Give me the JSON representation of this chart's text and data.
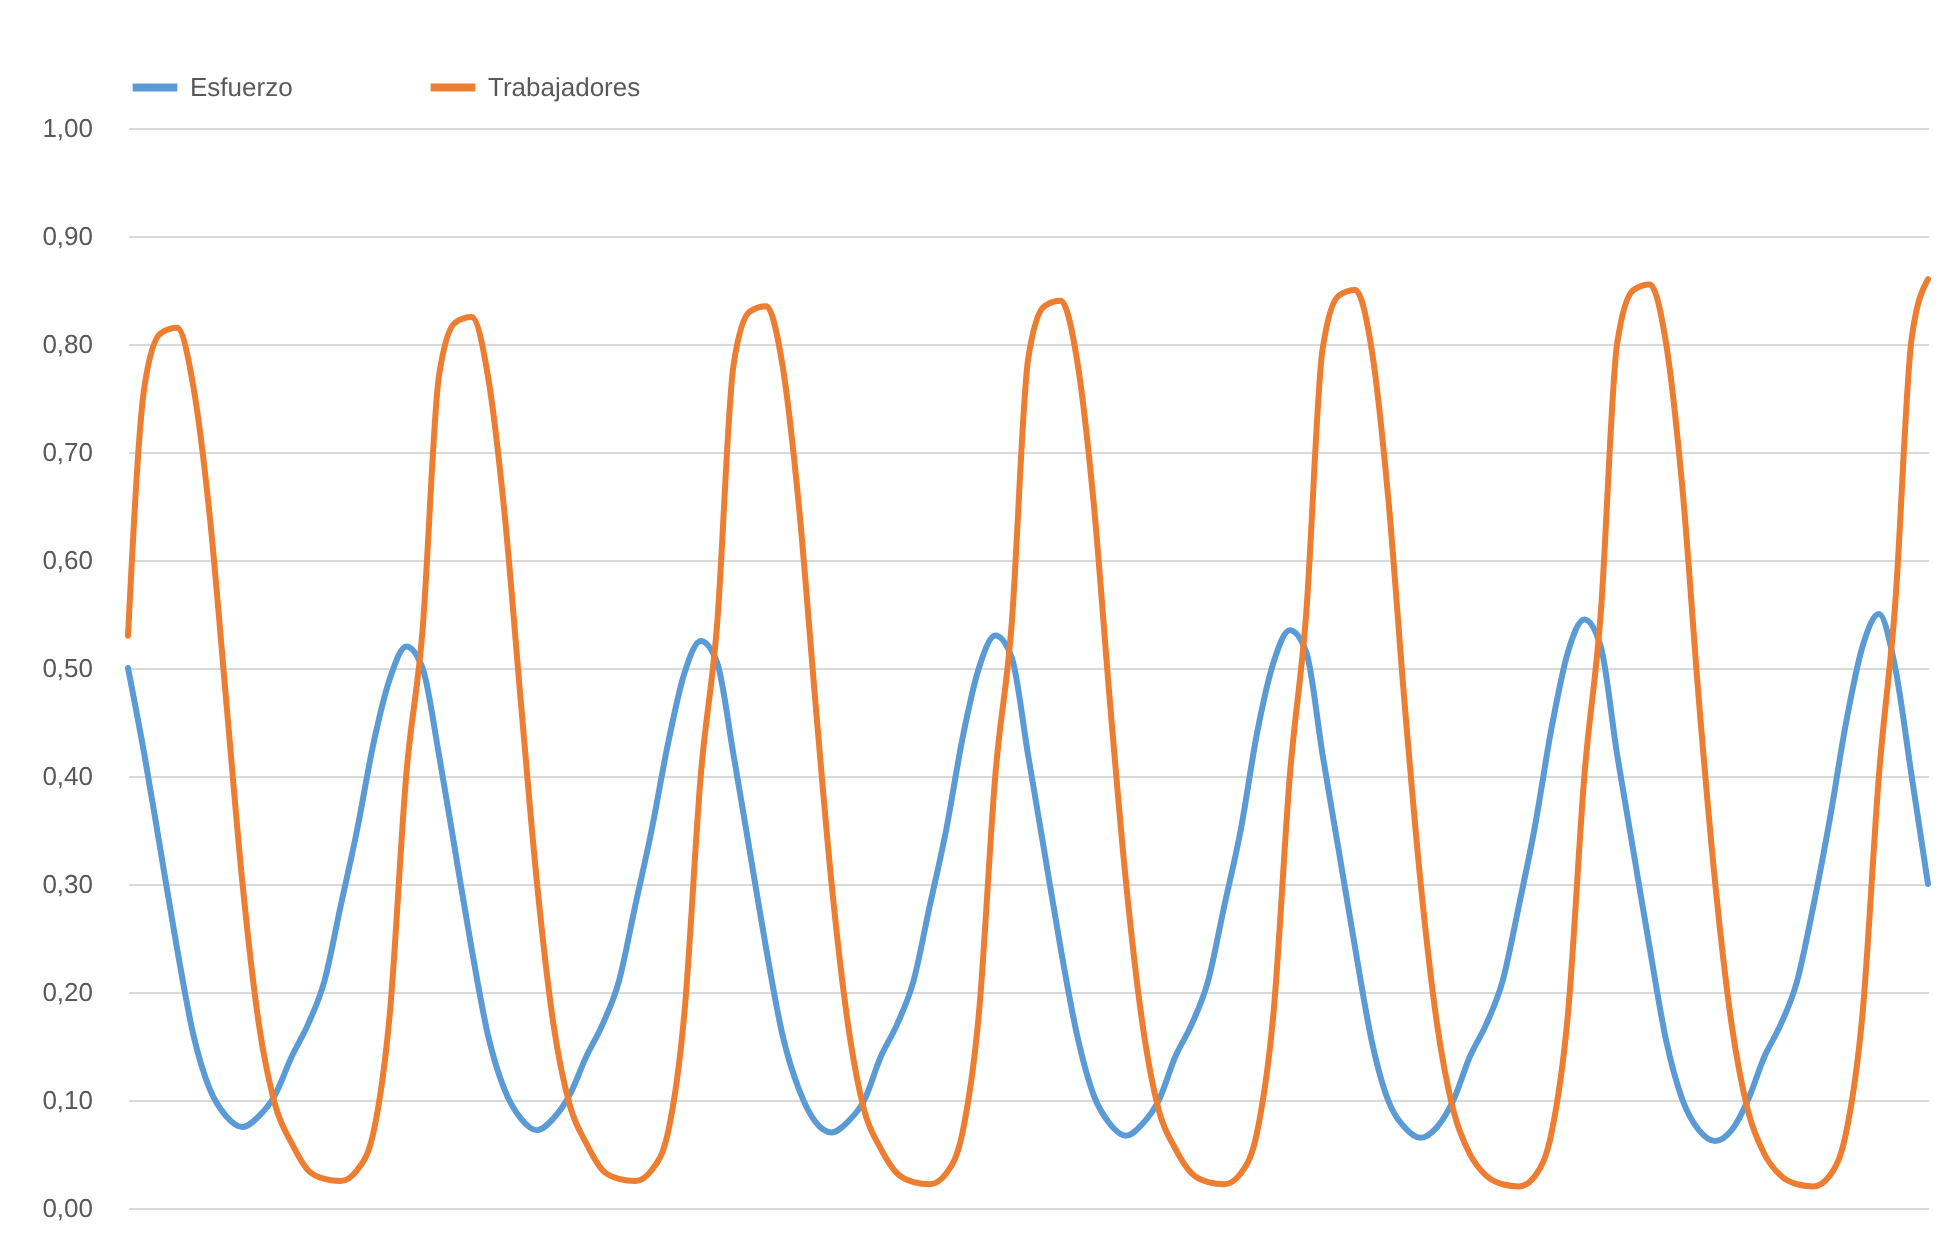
{
  "chart_data": {
    "type": "line",
    "categories": [
      null,
      null,
      null,
      null,
      null,
      null,
      null,
      null,
      null,
      null,
      null,
      null,
      null,
      null,
      null,
      null,
      null,
      null,
      null,
      null,
      null,
      null,
      null,
      null,
      null,
      null,
      null,
      null,
      null,
      null,
      null,
      null,
      null,
      null,
      null,
      null,
      null,
      null,
      null,
      null,
      null,
      null,
      null,
      null,
      null,
      null,
      null,
      null,
      null,
      null,
      null,
      null,
      null,
      null,
      null,
      null,
      null,
      null,
      null,
      null,
      null,
      null,
      null,
      null,
      null,
      null,
      null,
      null,
      null,
      null,
      null,
      null,
      null,
      null,
      null,
      null,
      null,
      null,
      null,
      null,
      null,
      null,
      null,
      null,
      null,
      null,
      null,
      null,
      null,
      null,
      null,
      null,
      null,
      null,
      null,
      null,
      null,
      null,
      null,
      null,
      null,
      null,
      null,
      null,
      null,
      null,
      null,
      null,
      null,
      null,
      null
    ],
    "series": [
      {
        "name": "Esfuerzo",
        "color": "#5b9bd5",
        "values": [
          0.5,
          0.42,
          0.33,
          0.24,
          0.16,
          0.11,
          0.085,
          0.075,
          0.085,
          0.105,
          0.14,
          0.17,
          0.21,
          0.28,
          0.35,
          0.43,
          0.49,
          0.52,
          0.5,
          0.42,
          0.33,
          0.24,
          0.16,
          0.11,
          0.083,
          0.072,
          0.083,
          0.105,
          0.14,
          0.17,
          0.21,
          0.28,
          0.35,
          0.43,
          0.495,
          0.525,
          0.505,
          0.42,
          0.33,
          0.24,
          0.16,
          0.11,
          0.08,
          0.07,
          0.08,
          0.1,
          0.14,
          0.17,
          0.21,
          0.28,
          0.35,
          0.435,
          0.5,
          0.53,
          0.51,
          0.42,
          0.33,
          0.24,
          0.16,
          0.105,
          0.078,
          0.067,
          0.078,
          0.1,
          0.14,
          0.17,
          0.21,
          0.28,
          0.35,
          0.44,
          0.505,
          0.535,
          0.515,
          0.42,
          0.33,
          0.24,
          0.155,
          0.1,
          0.075,
          0.065,
          0.075,
          0.1,
          0.14,
          0.17,
          0.21,
          0.28,
          0.355,
          0.445,
          0.515,
          0.545,
          0.52,
          0.42,
          0.33,
          0.24,
          0.155,
          0.1,
          0.072,
          0.062,
          0.072,
          0.1,
          0.14,
          0.17,
          0.21,
          0.28,
          0.36,
          0.45,
          0.52,
          0.55,
          0.5,
          0.4,
          0.3
        ]
      },
      {
        "name": "Trabajadores",
        "color": "#ed7d31",
        "values": [
          0.53,
          0.76,
          0.81,
          0.815,
          0.76,
          0.64,
          0.47,
          0.3,
          0.17,
          0.095,
          0.06,
          0.035,
          0.027,
          0.025,
          0.035,
          0.07,
          0.18,
          0.4,
          0.535,
          0.77,
          0.82,
          0.825,
          0.77,
          0.645,
          0.47,
          0.3,
          0.17,
          0.095,
          0.06,
          0.035,
          0.027,
          0.025,
          0.035,
          0.07,
          0.18,
          0.4,
          0.54,
          0.78,
          0.83,
          0.835,
          0.78,
          0.65,
          0.47,
          0.3,
          0.17,
          0.09,
          0.055,
          0.032,
          0.024,
          0.022,
          0.032,
          0.07,
          0.18,
          0.4,
          0.54,
          0.785,
          0.835,
          0.84,
          0.785,
          0.655,
          0.47,
          0.3,
          0.17,
          0.09,
          0.055,
          0.032,
          0.024,
          0.022,
          0.032,
          0.07,
          0.18,
          0.4,
          0.55,
          0.795,
          0.845,
          0.85,
          0.795,
          0.66,
          0.47,
          0.3,
          0.17,
          0.09,
          0.05,
          0.03,
          0.022,
          0.02,
          0.03,
          0.07,
          0.18,
          0.4,
          0.55,
          0.8,
          0.85,
          0.855,
          0.8,
          0.665,
          0.47,
          0.3,
          0.17,
          0.09,
          0.05,
          0.03,
          0.022,
          0.02,
          0.03,
          0.07,
          0.18,
          0.4,
          0.56,
          0.805,
          0.86
        ]
      }
    ],
    "ylim": [
      0,
      1
    ],
    "yticks": [
      {
        "value": 0,
        "label": "0,00"
      },
      {
        "value": 0.1,
        "label": "0,10"
      },
      {
        "value": 0.2,
        "label": "0,20"
      },
      {
        "value": 0.3,
        "label": "0,30"
      },
      {
        "value": 0.4,
        "label": "0,40"
      },
      {
        "value": 0.5,
        "label": "0,50"
      },
      {
        "value": 0.6,
        "label": "0,60"
      },
      {
        "value": 0.7,
        "label": "0,70"
      },
      {
        "value": 0.8,
        "label": "0,80"
      },
      {
        "value": 0.9,
        "label": "0,90"
      },
      {
        "value": 1,
        "label": "1,00"
      }
    ],
    "grid": "y",
    "legend": "top",
    "tick_labels": "y",
    "marker": "none",
    "line_style": "solid"
  }
}
